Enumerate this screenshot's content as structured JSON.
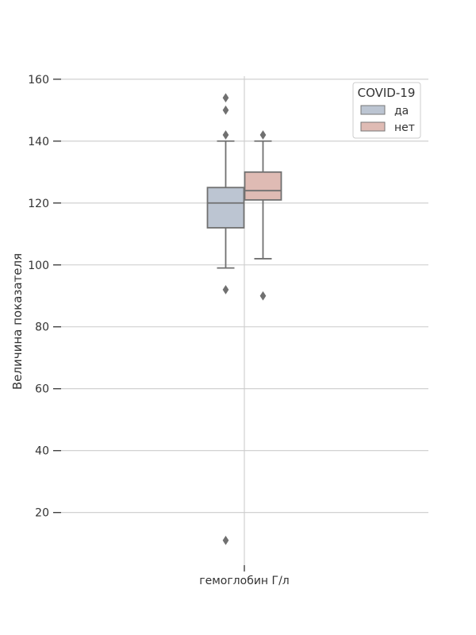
{
  "chart_data": {
    "type": "box",
    "ylabel": "Величина показателя",
    "xlabel": "",
    "categories": [
      "гемоглобин Г/л"
    ],
    "ylim": [
      3,
      162
    ],
    "yticks": [
      20,
      40,
      60,
      80,
      100,
      120,
      140,
      160
    ],
    "grid": true,
    "legend": {
      "title": "COVID-19",
      "position": "top-right"
    },
    "series": [
      {
        "name": "да",
        "color": "#bcc5d2",
        "stats": {
          "whisker_low": 99,
          "q1": 112,
          "median": 120,
          "q3": 125,
          "whisker_high": 140
        },
        "outliers": [
          154,
          150,
          142,
          92,
          11
        ]
      },
      {
        "name": "нет",
        "color": "#dfbbb4",
        "stats": {
          "whisker_low": 102,
          "q1": 121,
          "median": 124,
          "q3": 130,
          "whisker_high": 140
        },
        "outliers": [
          142,
          90
        ]
      }
    ]
  }
}
